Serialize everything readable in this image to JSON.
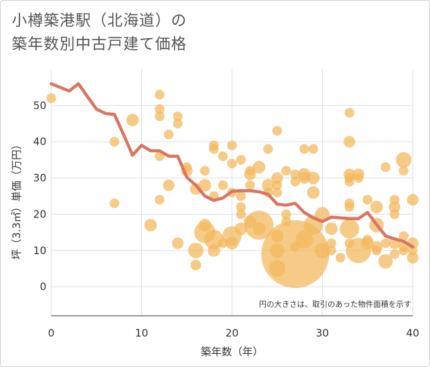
{
  "title_line1": "小樽築港駅（北海道）の",
  "title_line2": "築年数別中古戸建て価格",
  "chart_data": {
    "type": "scatter",
    "xlabel": "築年数（年）",
    "ylabel": "坪（3.3㎡）単価（万円）",
    "note": "円の大きさは、取引のあった物件面積を示す",
    "xlim": [
      0,
      40
    ],
    "ylim": [
      -8,
      60
    ],
    "xticks": [
      0,
      10,
      20,
      30,
      40
    ],
    "yticks": [
      0,
      10,
      20,
      30,
      40,
      50
    ],
    "grid": true,
    "colors": {
      "bubble": "#f2b75a",
      "line": "#d97560",
      "grid": "#d9dee8",
      "frame": "#cfcfcf"
    },
    "line": {
      "x": [
        0,
        1,
        2,
        3,
        4,
        5,
        6,
        7,
        8,
        9,
        10,
        11,
        12,
        13,
        14,
        15,
        16,
        17,
        18,
        19,
        20,
        21,
        22,
        23,
        24,
        25,
        26,
        27,
        28,
        29,
        30,
        31,
        32,
        33,
        34,
        35,
        36,
        37,
        38,
        39,
        40
      ],
      "y": [
        56,
        55,
        54,
        56,
        52.5,
        49,
        47.8,
        47.5,
        42,
        36.3,
        39,
        37.5,
        37.5,
        36,
        36,
        30.2,
        28,
        25,
        23.8,
        24.5,
        26.3,
        26.5,
        26.5,
        26.2,
        25.5,
        22.8,
        22.5,
        23,
        20.5,
        19,
        18,
        19.2,
        19,
        18.8,
        18.8,
        20.5,
        17.2,
        14,
        13.2,
        12.5,
        11
      ]
    },
    "points": [
      {
        "x": 0,
        "y": 52,
        "s": 1
      },
      {
        "x": 7,
        "y": 40,
        "s": 1
      },
      {
        "x": 7,
        "y": 23,
        "s": 1
      },
      {
        "x": 9,
        "y": 46,
        "s": 1.3
      },
      {
        "x": 11,
        "y": 17,
        "s": 1.3
      },
      {
        "x": 12,
        "y": 53,
        "s": 1
      },
      {
        "x": 12,
        "y": 49,
        "s": 1
      },
      {
        "x": 12,
        "y": 47,
        "s": 1
      },
      {
        "x": 12,
        "y": 36,
        "s": 1
      },
      {
        "x": 12,
        "y": 24,
        "s": 1
      },
      {
        "x": 13,
        "y": 42,
        "s": 1
      },
      {
        "x": 13,
        "y": 28,
        "s": 1.2
      },
      {
        "x": 14,
        "y": 47,
        "s": 1
      },
      {
        "x": 14,
        "y": 45,
        "s": 1
      },
      {
        "x": 14,
        "y": 12,
        "s": 1.2
      },
      {
        "x": 15,
        "y": 33,
        "s": 1
      },
      {
        "x": 15,
        "y": 32,
        "s": 1.2
      },
      {
        "x": 16,
        "y": 27,
        "s": 1.2
      },
      {
        "x": 16,
        "y": 10,
        "s": 1.6
      },
      {
        "x": 16,
        "y": 6,
        "s": 1.1
      },
      {
        "x": 17,
        "y": 32,
        "s": 1
      },
      {
        "x": 17,
        "y": 28,
        "s": 1.3
      },
      {
        "x": 17,
        "y": 17,
        "s": 1.3
      },
      {
        "x": 17,
        "y": 15,
        "s": 2.2
      },
      {
        "x": 18,
        "y": 39,
        "s": 1
      },
      {
        "x": 18,
        "y": 38,
        "s": 1
      },
      {
        "x": 18,
        "y": 25,
        "s": 1
      },
      {
        "x": 18,
        "y": 13,
        "s": 2
      },
      {
        "x": 18,
        "y": 10,
        "s": 1.3
      },
      {
        "x": 19,
        "y": 36,
        "s": 1
      },
      {
        "x": 19,
        "y": 28,
        "s": 1
      },
      {
        "x": 19,
        "y": 12,
        "s": 1
      },
      {
        "x": 20,
        "y": 39,
        "s": 1
      },
      {
        "x": 20,
        "y": 34,
        "s": 1
      },
      {
        "x": 20,
        "y": 26,
        "s": 1
      },
      {
        "x": 20,
        "y": 14,
        "s": 2
      },
      {
        "x": 20,
        "y": 12,
        "s": 1.3
      },
      {
        "x": 21,
        "y": 35,
        "s": 1
      },
      {
        "x": 21,
        "y": 25,
        "s": 1
      },
      {
        "x": 21,
        "y": 22,
        "s": 1
      },
      {
        "x": 21,
        "y": 20,
        "s": 1
      },
      {
        "x": 21,
        "y": 16,
        "s": 1.3
      },
      {
        "x": 22,
        "y": 32,
        "s": 1
      },
      {
        "x": 22,
        "y": 31,
        "s": 1.2
      },
      {
        "x": 22,
        "y": 28,
        "s": 1
      },
      {
        "x": 22,
        "y": 18,
        "s": 1.3
      },
      {
        "x": 23,
        "y": 33,
        "s": 1.3
      },
      {
        "x": 23,
        "y": 17,
        "s": 3
      },
      {
        "x": 23,
        "y": 16,
        "s": 1.3
      },
      {
        "x": 24,
        "y": 38,
        "s": 1
      },
      {
        "x": 24,
        "y": 28,
        "s": 1.3
      },
      {
        "x": 24,
        "y": 26,
        "s": 1
      },
      {
        "x": 25,
        "y": 43,
        "s": 1
      },
      {
        "x": 25,
        "y": 30,
        "s": 1.2
      },
      {
        "x": 25,
        "y": 28,
        "s": 1
      },
      {
        "x": 25,
        "y": 26,
        "s": 1
      },
      {
        "x": 25,
        "y": 14,
        "s": 1.3
      },
      {
        "x": 25,
        "y": 10,
        "s": 1.5
      },
      {
        "x": 25,
        "y": 5,
        "s": 1.7
      },
      {
        "x": 26,
        "y": 32,
        "s": 1
      },
      {
        "x": 26,
        "y": 20,
        "s": 1
      },
      {
        "x": 26,
        "y": 18,
        "s": 1
      },
      {
        "x": 27,
        "y": 31,
        "s": 1
      },
      {
        "x": 27,
        "y": 29,
        "s": 1
      },
      {
        "x": 27,
        "y": 9,
        "s": 7
      },
      {
        "x": 27,
        "y": 11,
        "s": 1
      },
      {
        "x": 28,
        "y": 38,
        "s": 1
      },
      {
        "x": 28,
        "y": 31,
        "s": 1.3
      },
      {
        "x": 28,
        "y": 30,
        "s": 1.2
      },
      {
        "x": 28,
        "y": 13,
        "s": 1.8
      },
      {
        "x": 29,
        "y": 38,
        "s": 1
      },
      {
        "x": 29,
        "y": 30,
        "s": 1.3
      },
      {
        "x": 29,
        "y": 26,
        "s": 1.3
      },
      {
        "x": 29,
        "y": 17,
        "s": 2
      },
      {
        "x": 30,
        "y": 20,
        "s": 1.5
      },
      {
        "x": 30,
        "y": 10,
        "s": 1.6
      },
      {
        "x": 31,
        "y": 16,
        "s": 1.3
      },
      {
        "x": 31,
        "y": 12,
        "s": 1
      },
      {
        "x": 31,
        "y": 10,
        "s": 1
      },
      {
        "x": 32,
        "y": 8,
        "s": 1
      },
      {
        "x": 33,
        "y": 48,
        "s": 1
      },
      {
        "x": 33,
        "y": 40,
        "s": 1.2
      },
      {
        "x": 33,
        "y": 31,
        "s": 1.2
      },
      {
        "x": 33,
        "y": 30,
        "s": 1
      },
      {
        "x": 33,
        "y": 29,
        "s": 1
      },
      {
        "x": 33,
        "y": 23,
        "s": 1
      },
      {
        "x": 33,
        "y": 22,
        "s": 1
      },
      {
        "x": 33,
        "y": 16,
        "s": 2
      },
      {
        "x": 33,
        "y": 12,
        "s": 1
      },
      {
        "x": 34,
        "y": 31,
        "s": 1.2
      },
      {
        "x": 34,
        "y": 30,
        "s": 1
      },
      {
        "x": 34,
        "y": 10,
        "s": 2.6
      },
      {
        "x": 35,
        "y": 24,
        "s": 1
      },
      {
        "x": 35,
        "y": 13,
        "s": 1
      },
      {
        "x": 35,
        "y": 12,
        "s": 1.3
      },
      {
        "x": 36,
        "y": 22,
        "s": 1.3
      },
      {
        "x": 36,
        "y": 17,
        "s": 1.5
      },
      {
        "x": 36,
        "y": 11,
        "s": 1.2
      },
      {
        "x": 36,
        "y": 10,
        "s": 1
      },
      {
        "x": 37,
        "y": 33,
        "s": 1
      },
      {
        "x": 37,
        "y": 12,
        "s": 1
      },
      {
        "x": 37,
        "y": 7,
        "s": 1.5
      },
      {
        "x": 38,
        "y": 24,
        "s": 1
      },
      {
        "x": 38,
        "y": 22,
        "s": 1.2
      },
      {
        "x": 38,
        "y": 20,
        "s": 1
      },
      {
        "x": 38,
        "y": 12,
        "s": 1.2
      },
      {
        "x": 38,
        "y": 9,
        "s": 1
      },
      {
        "x": 39,
        "y": 35,
        "s": 1.6
      },
      {
        "x": 39,
        "y": 32,
        "s": 1
      },
      {
        "x": 39,
        "y": 14,
        "s": 1
      },
      {
        "x": 39,
        "y": 11,
        "s": 1
      },
      {
        "x": 39,
        "y": 10,
        "s": 1
      },
      {
        "x": 40,
        "y": 24,
        "s": 1.2
      },
      {
        "x": 40,
        "y": 12,
        "s": 1.2
      },
      {
        "x": 40,
        "y": 10,
        "s": 1
      },
      {
        "x": 40,
        "y": 8,
        "s": 1.2
      }
    ]
  }
}
